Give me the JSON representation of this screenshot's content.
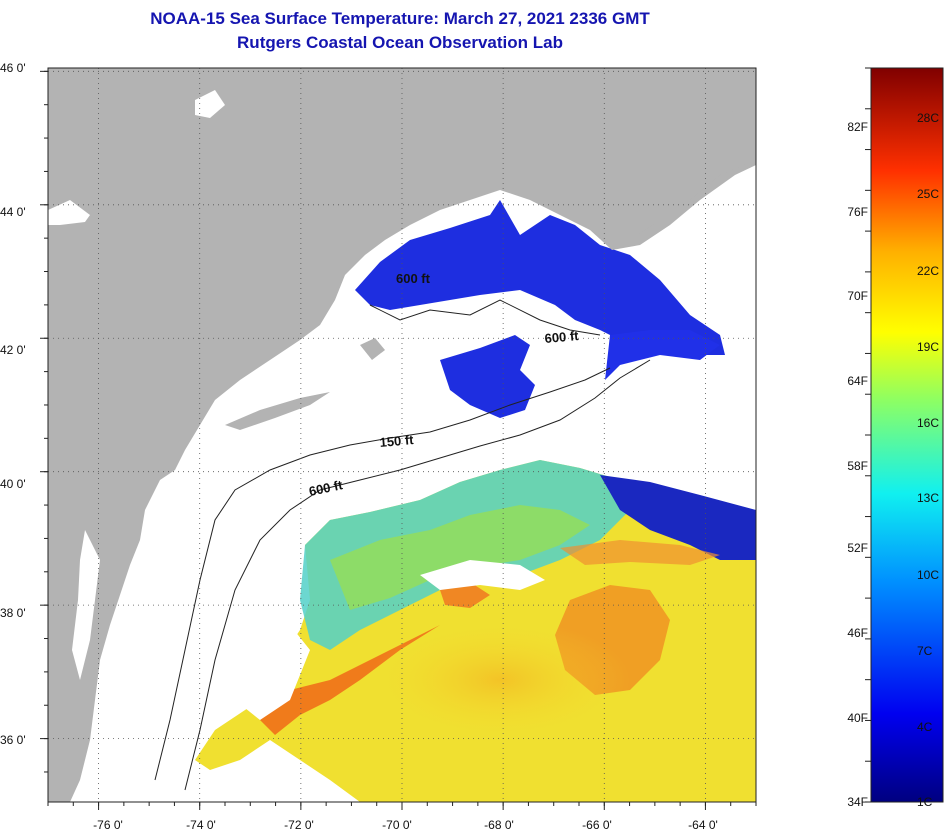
{
  "title_line1": "NOAA-15 Sea Surface Temperature:  March 27, 2021 2336 GMT",
  "title_line2": "Rutgers Coastal Ocean Observation Lab",
  "map": {
    "lat_labels": [
      {
        "text": "46 0'",
        "lat": 46
      },
      {
        "text": "44 0'",
        "lat": 44
      },
      {
        "text": "42 0'",
        "lat": 42
      },
      {
        "text": "40 0'",
        "lat": 40
      },
      {
        "text": "38 0'",
        "lat": 38
      },
      {
        "text": "36 0'",
        "lat": 36
      }
    ],
    "lon_labels": [
      {
        "text": "-76 0'",
        "lon": -76
      },
      {
        "text": "-74 0'",
        "lon": -74
      },
      {
        "text": "-72 0'",
        "lon": -72
      },
      {
        "text": "-70 0'",
        "lon": -70
      },
      {
        "text": "-68 0'",
        "lon": -68
      },
      {
        "text": "-66 0'",
        "lon": -66
      },
      {
        "text": "-64 0'",
        "lon": -64
      }
    ],
    "lat_range": [
      35.05,
      46.05
    ],
    "lon_range": [
      -77,
      -63
    ],
    "grid": "dotted",
    "isobath_labels": [
      {
        "text": "600 ft"
      },
      {
        "text": "150 ft"
      },
      {
        "text": "600 ft"
      },
      {
        "text": "600 ft"
      }
    ],
    "colors": {
      "land": "#b3b3b3",
      "cloud_mask": "#ffffff",
      "cold_water": "#1a28d8",
      "warm_water": "#f0e030",
      "hot_water": "#f06818"
    }
  },
  "colorbar": {
    "min_f": 34,
    "max_f": 88,
    "fahrenheit_labels": [
      "82F",
      "76F",
      "70F",
      "64F",
      "58F",
      "52F",
      "46F",
      "40F",
      "34F"
    ],
    "celsius_labels": [
      "28C",
      "25C",
      "22C",
      "19C",
      "16C",
      "13C",
      "10C",
      "7C",
      "4C",
      "1C"
    ]
  }
}
